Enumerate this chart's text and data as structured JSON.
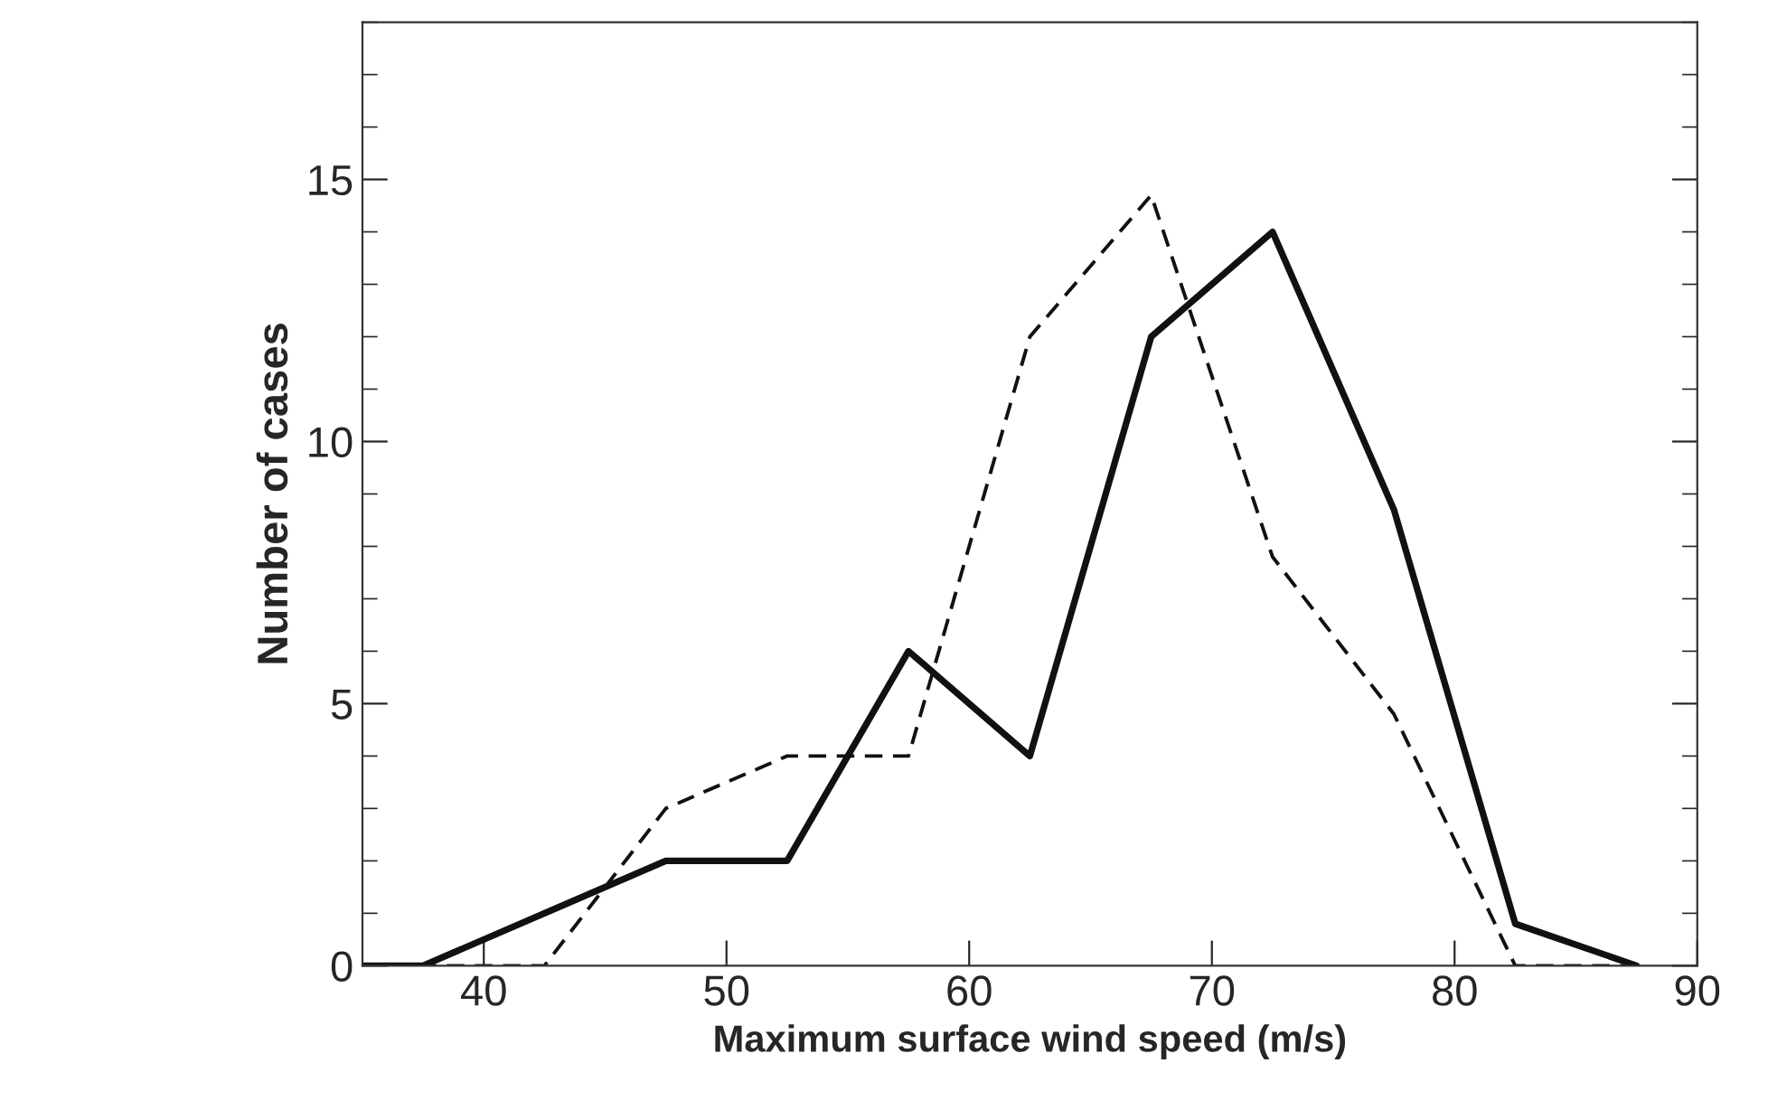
{
  "chart_data": {
    "type": "line",
    "xlabel": "Maximum surface wind speed (m/s)",
    "ylabel": "Number of cases",
    "xlim": [
      35,
      90
    ],
    "xticks": [
      40,
      50,
      60,
      70,
      80,
      90
    ],
    "ylim": [
      0,
      18
    ],
    "yticks": [
      0,
      5,
      10,
      15
    ],
    "grid": false,
    "legend": false,
    "marker": "none",
    "series": [
      {
        "color": "#111111",
        "line_style": "solid",
        "x": [
          35,
          37.5,
          42.5,
          47.5,
          52.5,
          57.5,
          62.5,
          67.5,
          72.5,
          77.5,
          82.5,
          87.5
        ],
        "values": [
          0,
          0,
          1,
          2,
          2,
          6,
          4,
          12,
          14,
          8.7,
          0.8,
          0
        ]
      },
      {
        "color": "#111111",
        "line_style": "dashed",
        "x": [
          35,
          42.5,
          47.5,
          52.5,
          57.5,
          62.5,
          67.5,
          72.5,
          77.5,
          82.5,
          87.5
        ],
        "values": [
          0,
          0,
          3,
          4,
          4,
          12,
          14.7,
          7.8,
          4.8,
          0,
          0
        ]
      }
    ]
  }
}
